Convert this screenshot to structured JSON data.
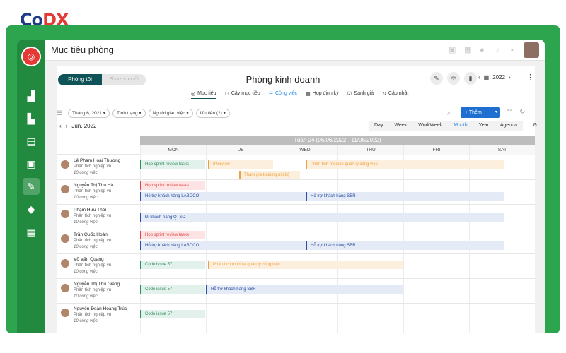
{
  "brand": {
    "logo_text_a": "Co",
    "logo_text_b": "DX"
  },
  "topbar": {
    "title": "Mục tiêu phòng"
  },
  "header": {
    "seg_active": "Phòng tôi",
    "seg_inactive": "Share cho tôi",
    "department": "Phòng kinh doanh",
    "year": "2022",
    "year_prev": "‹",
    "year_next": "›"
  },
  "views": [
    {
      "icon": "◎",
      "label": "Mục tiêu",
      "selected": true
    },
    {
      "icon": "⚇",
      "label": "Cây mục tiêu"
    },
    {
      "icon": "☰",
      "label": "Công việc",
      "blue": true
    },
    {
      "icon": "▦",
      "label": "Họp định kỳ"
    },
    {
      "icon": "☑",
      "label": "Đánh giá"
    },
    {
      "icon": "↻",
      "label": "Cập nhật"
    }
  ],
  "filters": [
    "Tháng 6, 2021 ▾",
    "Tình trạng ▾",
    "Người giao việc ▾",
    "Ưu tiên (2) ▾"
  ],
  "add_button": {
    "label": "+ Thêm",
    "caret": "▾"
  },
  "calendar": {
    "month_label": "Jun, 2022",
    "view_buttons": [
      "Day",
      "Week",
      "WorkWeek",
      "Month",
      "Year",
      "Agenda"
    ],
    "active_view": "Month",
    "week_label": "Tuần 24 (06/06/2022 - 11/06/2022)",
    "days": [
      "MON",
      "TUE",
      "WED",
      "THU",
      "FRI",
      "SAT"
    ]
  },
  "people": [
    {
      "name": "Lê Phạm Hoài Thương",
      "role": "Phân tích nghiệp vụ",
      "count": "10 công việc"
    },
    {
      "name": "Nguyễn Thị Thu Hà",
      "role": "Phân tích nghiệp vụ",
      "count": "10 công việc"
    },
    {
      "name": "Phạm Hữu Thời",
      "role": "Phân tích nghiệp vụ",
      "count": "10 công việc"
    },
    {
      "name": "Trần Quốc Hoàn",
      "role": "Phân tích nghiệp vụ",
      "count": "10 công việc"
    },
    {
      "name": "Võ Văn Quang",
      "role": "Phân tích nghiệp vụ",
      "count": "10 công việc"
    },
    {
      "name": "Nguyễn Thị Thu Giang",
      "role": "Phân tích nghiệp vụ",
      "count": "10 công việc"
    },
    {
      "name": "Nguyễn Đoàn Hoàng Trúc",
      "role": "Phân tích nghiệp vụ",
      "count": "10 công việc"
    }
  ],
  "tasks": {
    "r0_a": "Họp sprint review tasks",
    "r0_b": "Interview",
    "r0_c": "Phân tích module quản lý công việc",
    "r0_d": "Tham gia training nội bộ",
    "r1_a": "Họp sprint review tasks",
    "r1_b": "Hỗ trợ khách hàng LABOCO",
    "r1_c": "Hỗ trợ khách hàng SBR",
    "r2_a": "Đi khách hàng QTSC",
    "r3_a": "Họp sprint review tasks",
    "r3_b": "Hỗ trợ khách hàng LABOCO",
    "r3_c": "Hỗ trợ khách hàng SBR",
    "r4_a": "Code issue 57",
    "r4_b": "Phân tích module quản lý công việc",
    "r5_a": "Code issue 57",
    "r5_b": "Hỗ trợ khách hàng SBR",
    "r6_a": "Code issue 57"
  },
  "colors": {
    "brand_green": "#2da44e",
    "sidebar_green": "#218a3e",
    "primary_blue": "#1f6fd1",
    "teal": "#0f5257"
  }
}
